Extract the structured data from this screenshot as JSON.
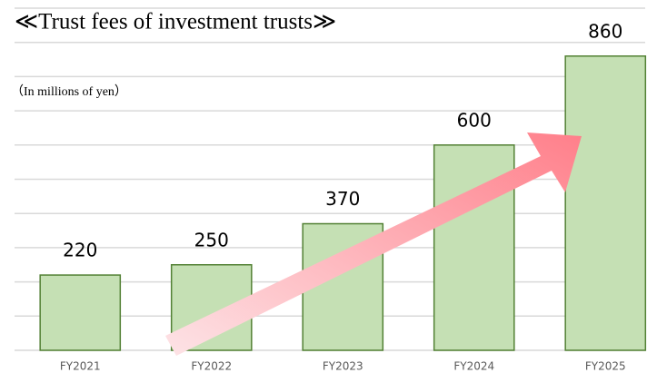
{
  "chart_data": {
    "type": "bar",
    "title": "≪Trust fees of investment trusts≫",
    "subtitle": "（In millions of yen）",
    "categories": [
      "FY2021",
      "FY2022",
      "FY2023",
      "FY2024",
      "FY2025"
    ],
    "values": [
      220,
      250,
      370,
      600,
      860
    ],
    "color": "#c5e0b4",
    "ylim": [
      0,
      1000
    ],
    "yticks": [
      0,
      100,
      200,
      300,
      400,
      500,
      600,
      700,
      800,
      900,
      1000
    ],
    "grid": true
  }
}
